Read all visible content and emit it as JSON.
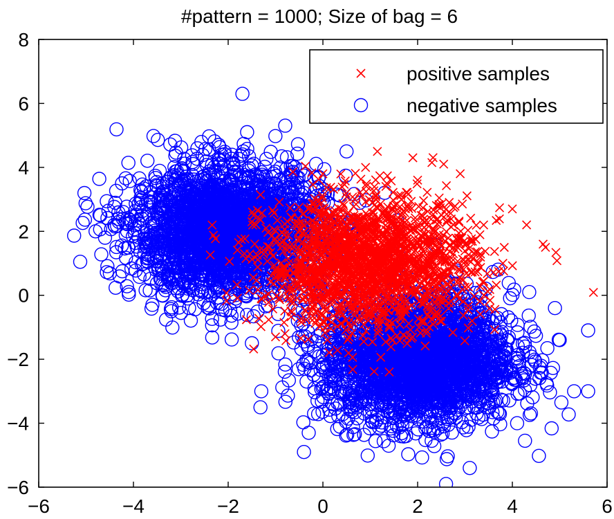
{
  "chart_data": {
    "type": "scatter",
    "title": "#pattern = 1000; Size of bag = 6",
    "xlabel": "",
    "ylabel": "",
    "xlim": [
      -6,
      6
    ],
    "ylim": [
      -6,
      8
    ],
    "grid": false,
    "legend_position": "top-right",
    "x_ticks": [
      -6,
      -4,
      -2,
      0,
      2,
      4,
      6
    ],
    "y_ticks": [
      -6,
      -4,
      -2,
      0,
      2,
      4,
      6,
      8
    ],
    "x_tick_labels": [
      "−6",
      "−4",
      "−2",
      "0",
      "2",
      "4",
      "6"
    ],
    "y_tick_labels": [
      "−6",
      "−4",
      "−2",
      "0",
      "2",
      "4",
      "6",
      "8"
    ],
    "series": [
      {
        "name": "positive samples",
        "marker": "x",
        "color": "#ff0000",
        "description": "single red cluster centered near (1, 1), ~2000 points",
        "clusters": [
          {
            "center": [
              1.0,
              1.0
            ],
            "std": [
              1.1,
              1.0
            ],
            "count": 2000
          }
        ],
        "outliers": [
          [
            1.15,
            4.5
          ],
          [
            1.9,
            4.3
          ],
          [
            2.3,
            4.15
          ],
          [
            2.55,
            4.1
          ],
          [
            2.0,
            3.6
          ],
          [
            4.7,
            1.5
          ],
          [
            4.65,
            1.6
          ],
          [
            4.3,
            2.2
          ],
          [
            4.0,
            2.7
          ],
          [
            2.9,
            3.8
          ],
          [
            -1.5,
            2.3
          ],
          [
            -1.2,
            2.1
          ],
          [
            -0.8,
            -1.2
          ],
          [
            -1.0,
            -1.3
          ],
          [
            1.4,
            -2.4
          ],
          [
            3.8,
            1.0
          ],
          [
            -0.3,
            0.4
          ],
          [
            0.9,
            4.0
          ],
          [
            0.0,
            3.8
          ]
        ]
      },
      {
        "name": "negative samples",
        "marker": "o",
        "color": "#0000ff",
        "description": "two blue clusters centered near (-2, 2) and (2, -2), ~5000 points total",
        "clusters": [
          {
            "center": [
              -2.0,
              2.0
            ],
            "std": [
              1.0,
              1.0
            ],
            "count": 2500
          },
          {
            "center": [
              2.0,
              -2.0
            ],
            "std": [
              1.0,
              1.0
            ],
            "count": 2500
          }
        ],
        "outliers": [
          [
            -1.7,
            6.3
          ],
          [
            -1.6,
            5.1
          ],
          [
            -2.2,
            4.7
          ],
          [
            -4.8,
            2.0
          ],
          [
            -4.6,
            1.8
          ],
          [
            -4.7,
            2.5
          ],
          [
            -3.6,
            -0.3
          ],
          [
            -1.5,
            -1.5
          ],
          [
            -1.3,
            -3.0
          ],
          [
            2.6,
            -5.9
          ],
          [
            3.1,
            -5.4
          ],
          [
            5.6,
            -1.1
          ],
          [
            5.6,
            -3.0
          ],
          [
            5.0,
            -1.4
          ],
          [
            4.9,
            -0.4
          ],
          [
            3.7,
            0.8
          ],
          [
            0.5,
            4.5
          ],
          [
            -0.4,
            -4.9
          ],
          [
            -0.3,
            -4.3
          ],
          [
            4.1,
            -4.0
          ],
          [
            -4.1,
            0.1
          ],
          [
            -3.2,
            -0.5
          ]
        ]
      }
    ]
  }
}
